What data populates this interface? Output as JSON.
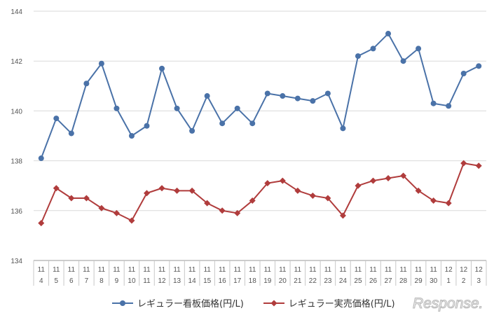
{
  "chart_data": {
    "type": "line",
    "x_labels": [
      [
        "11",
        "4"
      ],
      [
        "11",
        "5"
      ],
      [
        "11",
        "6"
      ],
      [
        "11",
        "7"
      ],
      [
        "11",
        "8"
      ],
      [
        "11",
        "9"
      ],
      [
        "11",
        "10"
      ],
      [
        "11",
        "11"
      ],
      [
        "11",
        "12"
      ],
      [
        "11",
        "13"
      ],
      [
        "11",
        "14"
      ],
      [
        "11",
        "15"
      ],
      [
        "11",
        "16"
      ],
      [
        "11",
        "17"
      ],
      [
        "11",
        "18"
      ],
      [
        "11",
        "19"
      ],
      [
        "11",
        "20"
      ],
      [
        "11",
        "21"
      ],
      [
        "11",
        "22"
      ],
      [
        "11",
        "23"
      ],
      [
        "11",
        "24"
      ],
      [
        "11",
        "25"
      ],
      [
        "11",
        "26"
      ],
      [
        "11",
        "27"
      ],
      [
        "11",
        "28"
      ],
      [
        "11",
        "29"
      ],
      [
        "11",
        "30"
      ],
      [
        "12",
        "1"
      ],
      [
        "12",
        "2"
      ],
      [
        "12",
        "3"
      ]
    ],
    "ylim": [
      134,
      144
    ],
    "yticks": [
      134,
      136,
      138,
      140,
      142,
      144
    ],
    "grid": true,
    "legend_position": "bottom",
    "series": [
      {
        "name": "レギュラー看板価格(円/L)",
        "color": "#4a72a8",
        "marker": "circle",
        "values": [
          138.1,
          139.7,
          139.1,
          141.1,
          141.9,
          140.1,
          139.0,
          139.4,
          141.7,
          140.1,
          139.2,
          140.6,
          139.5,
          140.1,
          139.5,
          140.7,
          140.6,
          140.5,
          140.4,
          140.7,
          139.3,
          142.2,
          142.5,
          143.1,
          142.0,
          142.5,
          140.3,
          140.2,
          141.5,
          141.8
        ]
      },
      {
        "name": "レギュラー実売価格(円/L)",
        "color": "#b03c3c",
        "marker": "diamond",
        "values": [
          135.5,
          136.9,
          136.5,
          136.5,
          136.1,
          135.9,
          135.6,
          136.7,
          136.9,
          136.8,
          136.8,
          136.3,
          136.0,
          135.9,
          136.4,
          137.1,
          137.2,
          136.8,
          136.6,
          136.5,
          135.8,
          137.0,
          137.2,
          137.3,
          137.4,
          136.8,
          136.4,
          136.3,
          137.9,
          137.8
        ]
      }
    ]
  },
  "watermark": {
    "text": "Response."
  }
}
